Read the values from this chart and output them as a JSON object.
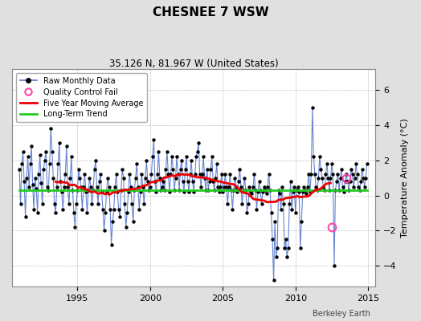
{
  "title": "CHESNEE 7 WSW",
  "subtitle": "35.126 N, 81.967 W (United States)",
  "ylabel": "Temperature Anomaly (°C)",
  "watermark": "Berkeley Earth",
  "xlim": [
    1990.5,
    2015.5
  ],
  "ylim": [
    -5.2,
    7.2
  ],
  "yticks": [
    -4,
    -2,
    0,
    2,
    4,
    6
  ],
  "xticks": [
    1995,
    2000,
    2005,
    2010,
    2015
  ],
  "bg_color": "#e0e0e0",
  "plot_bg_color": "#ffffff",
  "grid_color": "#c0c0c0",
  "raw_line_color": "#5577cc",
  "raw_dot_color": "#000000",
  "moving_avg_color": "#ee0000",
  "trend_color": "#22cc22",
  "qc_fail_color": "#ff44aa",
  "start_year": 1991,
  "months_per_year": 12,
  "long_term_trend_y": 0.28,
  "raw_monthly_data": [
    1.5,
    -0.5,
    1.8,
    2.5,
    0.8,
    -1.2,
    1.0,
    2.2,
    0.5,
    1.8,
    2.8,
    0.6,
    -0.8,
    1.0,
    0.4,
    -1.0,
    1.2,
    2.3,
    0.7,
    -0.5,
    1.5,
    2.0,
    2.5,
    0.5,
    0.3,
    1.8,
    3.8,
    2.5,
    1.0,
    -0.5,
    -1.0,
    0.5,
    1.8,
    3.0,
    0.8,
    0.2,
    -0.8,
    0.5,
    1.2,
    2.8,
    0.5,
    -0.5,
    1.0,
    2.2,
    0.3,
    -1.0,
    -1.8,
    -0.5,
    0.3,
    1.5,
    1.0,
    0.5,
    -0.8,
    0.5,
    1.2,
    0.2,
    -1.0,
    0.3,
    1.0,
    0.5,
    -0.5,
    0.3,
    1.5,
    2.0,
    0.5,
    -0.5,
    0.8,
    1.2,
    0.2,
    -0.8,
    -2.0,
    -1.0,
    0.2,
    1.0,
    0.5,
    -0.8,
    -2.8,
    -1.5,
    -0.8,
    0.5,
    1.2,
    0.2,
    -0.8,
    -1.2,
    0.3,
    1.5,
    1.0,
    -0.5,
    -1.8,
    -1.0,
    0.2,
    1.2,
    0.5,
    -0.5,
    -1.5,
    0.3,
    1.0,
    1.8,
    0.5,
    -0.8,
    0.2,
    1.2,
    0.5,
    -0.5,
    1.0,
    2.0,
    0.8,
    0.3,
    0.5,
    1.2,
    2.2,
    3.2,
    0.8,
    0.2,
    1.2,
    2.5,
    1.0,
    0.3,
    0.5,
    0.8,
    0.3,
    1.5,
    2.5,
    1.2,
    0.2,
    1.2,
    2.2,
    1.5,
    0.3,
    1.0,
    2.2,
    1.2,
    0.3,
    1.5,
    2.0,
    0.8,
    0.2,
    1.5,
    2.2,
    0.8,
    0.2,
    1.2,
    2.0,
    0.8,
    0.2,
    1.2,
    2.2,
    2.5,
    3.0,
    1.2,
    0.5,
    1.2,
    2.2,
    1.0,
    0.3,
    1.5,
    0.3,
    0.8,
    1.5,
    2.2,
    0.8,
    0.3,
    1.0,
    1.8,
    0.5,
    0.2,
    0.5,
    1.2,
    0.2,
    0.5,
    1.2,
    0.5,
    -0.5,
    0.5,
    1.2,
    0.3,
    -0.8,
    0.3,
    1.0,
    0.5,
    0.2,
    0.8,
    1.5,
    0.5,
    -0.5,
    0.3,
    1.0,
    0.3,
    -1.0,
    -0.5,
    0.5,
    0.2,
    0.1,
    0.5,
    1.2,
    0.3,
    -0.8,
    0.2,
    0.8,
    0.3,
    -0.5,
    0.2,
    0.5,
    0.3,
    0.1,
    0.5,
    1.2,
    0.3,
    -1.0,
    -2.5,
    -4.8,
    -1.5,
    -3.5,
    -3.0,
    0.3,
    0.1,
    -0.8,
    0.5,
    -0.5,
    -3.0,
    -2.5,
    -3.5,
    -3.0,
    -0.5,
    0.8,
    -0.8,
    0.2,
    0.5,
    -1.0,
    0.3,
    0.5,
    0.2,
    -3.0,
    -1.5,
    0.2,
    0.5,
    0.3,
    0.1,
    0.5,
    1.2,
    0.2,
    1.2,
    5.0,
    2.2,
    1.2,
    0.5,
    0.3,
    1.0,
    2.2,
    1.5,
    1.0,
    0.5,
    0.3,
    1.2,
    1.8,
    1.0,
    0.3,
    1.0,
    1.8,
    1.2,
    -4.0,
    0.3,
    0.8,
    1.2,
    0.3,
    1.0,
    1.5,
    0.5,
    0.2,
    0.8,
    1.2,
    0.8,
    0.3,
    0.8,
    1.5,
    1.2,
    0.5,
    1.0,
    1.8,
    1.2,
    0.5,
    0.3,
    0.8,
    1.5,
    1.0,
    0.5,
    1.0,
    1.8
  ],
  "qc_fail_points": [
    [
      2013.5,
      1.0
    ],
    [
      2012.5,
      -1.8
    ]
  ],
  "moving_avg_window": 60
}
